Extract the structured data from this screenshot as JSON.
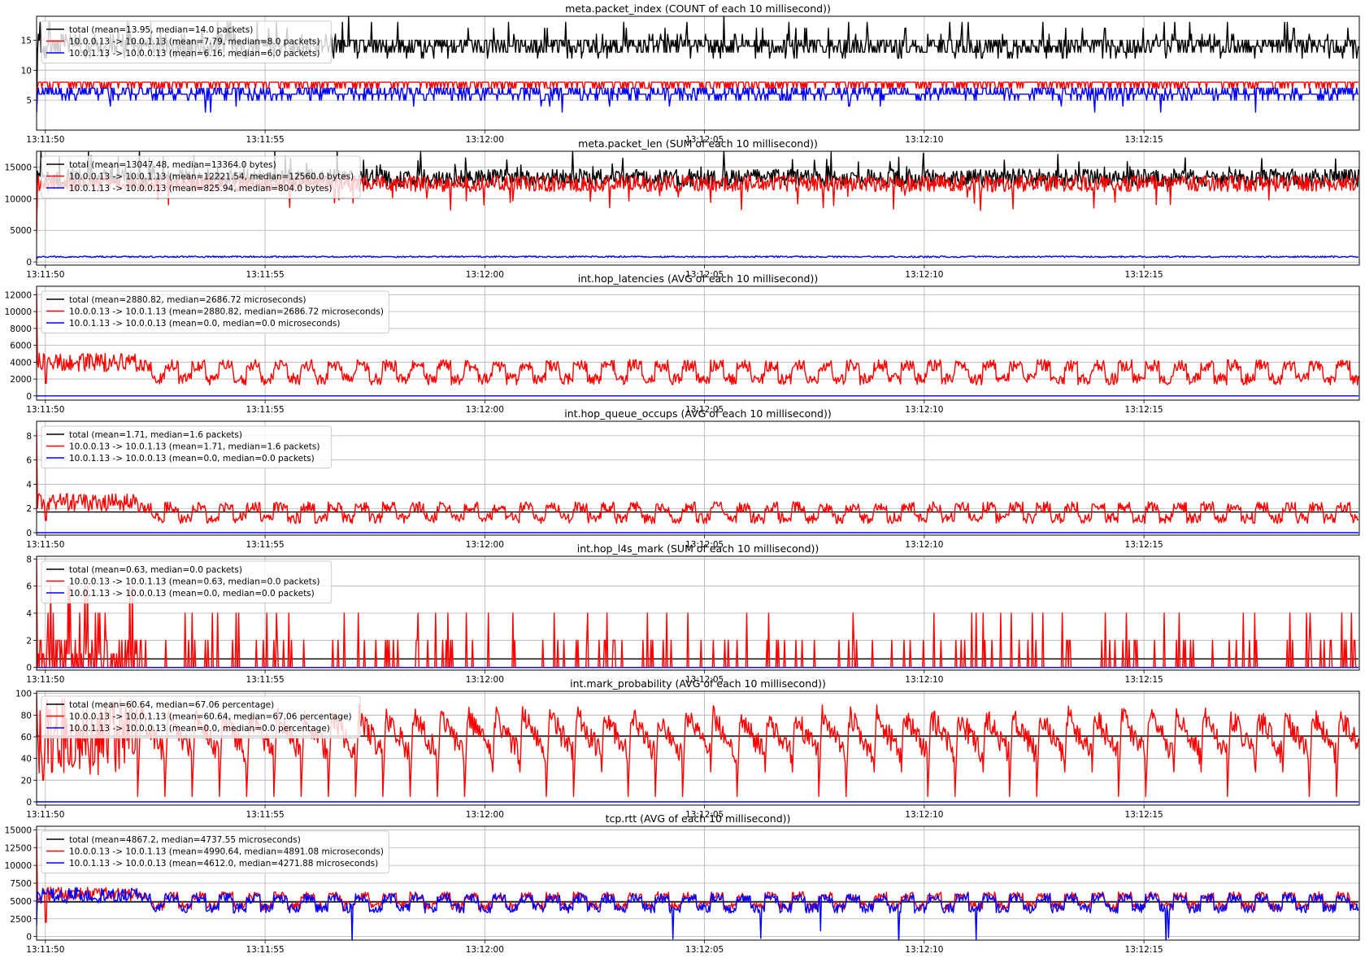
{
  "figure": {
    "x_ticks": [
      "13:11:50",
      "13:11:55",
      "13:12:00",
      "13:12:05",
      "13:12:10",
      "13:12:15"
    ],
    "series_colors": {
      "total": "#000000",
      "forward": "#ff0000",
      "reverse": "#0000ff"
    }
  },
  "chart_data": [
    {
      "type": "line",
      "title": "meta.packet_index (COUNT of each 10 millisecond))",
      "x_range": [
        "13:11:49.8",
        "13:12:19.9"
      ],
      "ylim": [
        0,
        19
      ],
      "y_ticks": [
        5,
        10,
        15
      ],
      "grid": true,
      "legend_position": "top-left",
      "series": [
        {
          "name": "total (mean=13.95, median=14.0 packets)",
          "color": "#000000",
          "profile": {
            "base": 13.95,
            "noise": 1.6,
            "spikes": 0.05,
            "spike_amp": 3,
            "start_points": [
              [
                0,
                3
              ],
              [
                0.3,
                18
              ],
              [
                1.0,
                14
              ]
            ]
          }
        },
        {
          "name": "10.0.0.13 -> 10.0.1.13 (mean=7.79, median=8.0 packets)",
          "color": "#ff0000",
          "profile": {
            "base": 7.79,
            "noise": 0.6,
            "spikes": 0.0,
            "spike_amp": 0,
            "start_points": [
              [
                0,
                3
              ],
              [
                0.4,
                8
              ]
            ]
          }
        },
        {
          "name": "10.0.1.13 -> 10.0.0.13 (mean=6.16, median=6.0 packets)",
          "color": "#0000ff",
          "profile": {
            "base": 6.16,
            "noise": 0.9,
            "spikes": 0.02,
            "spike_amp": -2,
            "start_points": [
              [
                0,
                3
              ],
              [
                0.4,
                6
              ]
            ]
          }
        }
      ]
    },
    {
      "type": "line",
      "title": "meta.packet_len (SUM of each 10 millisecond))",
      "x_range": [
        "13:11:49.8",
        "13:12:19.9"
      ],
      "ylim": [
        -500,
        17500
      ],
      "y_ticks": [
        0,
        5000,
        10000,
        15000
      ],
      "grid": true,
      "legend_position": "top-left",
      "series": [
        {
          "name": "total (mean=13047.48, median=13364.0 bytes)",
          "color": "#000000",
          "profile": {
            "base": 13300,
            "noise": 1400,
            "spikes": 0.03,
            "spike_amp": 3000,
            "start_points": [
              [
                0,
                5000
              ],
              [
                0.3,
                13000
              ]
            ]
          }
        },
        {
          "name": "10.0.0.13 -> 10.0.1.13 (mean=12221.54, median=12560.0 bytes)",
          "color": "#ff0000",
          "profile": {
            "base": 12400,
            "noise": 1300,
            "spikes": 0.02,
            "spike_amp": -3000,
            "start_points": [
              [
                0,
                4500
              ],
              [
                0.3,
                12500
              ]
            ]
          }
        },
        {
          "name": "10.0.1.13 -> 10.0.0.13 (mean=825.94, median=804.0 bytes)",
          "color": "#0000ff",
          "profile": {
            "base": 820,
            "noise": 120,
            "spikes": 0.0,
            "spike_amp": 0,
            "start_points": [
              [
                0,
                400
              ],
              [
                0.3,
                820
              ]
            ]
          }
        }
      ]
    },
    {
      "type": "line",
      "title": "int.hop_latencies (AVG of each 10 millisecond))",
      "x_range": [
        "13:11:49.8",
        "13:12:19.9"
      ],
      "ylim": [
        -500,
        13000
      ],
      "y_ticks": [
        0,
        2000,
        4000,
        6000,
        8000,
        10000,
        12000
      ],
      "grid": true,
      "legend_position": "top-left",
      "series": [
        {
          "name": "total (mean=2880.82, median=2686.72 microseconds)",
          "color": "#000000",
          "profile": {
            "base": 2880.82,
            "noise": 0,
            "spikes": 0.0,
            "spike_amp": 0,
            "hidden_under": "10.0.0.13 -> 10.0.1.13"
          }
        },
        {
          "name": "10.0.0.13 -> 10.0.1.13 (mean=2880.82, median=2686.72 microseconds)",
          "color": "#ff0000",
          "profile": {
            "base": 2880,
            "noise": 700,
            "square_high": 3600,
            "square_low": 2000,
            "burst_until": 2.3,
            "burst_level": 4000,
            "start_points": [
              [
                0,
                12500
              ],
              [
                0.2,
                1500
              ],
              [
                0.4,
                4000
              ]
            ]
          }
        },
        {
          "name": "10.0.1.13 -> 10.0.0.13 (mean=0.0, median=0.0 microseconds)",
          "color": "#0000ff",
          "profile": {
            "base": 0,
            "noise": 0
          }
        }
      ]
    },
    {
      "type": "line",
      "title": "int.hop_queue_occups (AVG of each 10 millisecond))",
      "x_range": [
        "13:11:49.8",
        "13:12:19.9"
      ],
      "ylim": [
        -0.2,
        9.2
      ],
      "y_ticks": [
        0,
        2,
        4,
        6,
        8
      ],
      "grid": true,
      "legend_position": "top-left",
      "series": [
        {
          "name": "total (mean=1.71, median=1.6 packets)",
          "color": "#000000",
          "profile": {
            "base": 1.71,
            "noise": 0
          }
        },
        {
          "name": "10.0.0.13 -> 10.0.1.13 (mean=1.71, median=1.6 packets)",
          "color": "#ff0000",
          "profile": {
            "base": 1.71,
            "noise": 0.45,
            "square_high": 2.1,
            "square_low": 1.2,
            "burst_until": 2.3,
            "burst_level": 2.5,
            "start_points": [
              [
                0,
                8.5
              ],
              [
                0.2,
                1
              ],
              [
                0.4,
                2.5
              ]
            ]
          }
        },
        {
          "name": "10.0.1.13 -> 10.0.0.13 (mean=0.0, median=0.0 packets)",
          "color": "#0000ff",
          "profile": {
            "base": 0,
            "noise": 0
          }
        }
      ]
    },
    {
      "type": "line",
      "title": "int.hop_l4s_mark (SUM of each 10 millisecond))",
      "x_range": [
        "13:11:49.8",
        "13:12:19.9"
      ],
      "ylim": [
        -0.2,
        8.2
      ],
      "y_ticks": [
        0,
        2,
        4,
        6,
        8
      ],
      "grid": true,
      "legend_position": "top-left",
      "series": [
        {
          "name": "total (mean=0.63, median=0.0 packets)",
          "color": "#000000",
          "profile": {
            "base": 0.63,
            "noise": 0
          }
        },
        {
          "name": "10.0.0.13 -> 10.0.1.13 (mean=0.63, median=0.0 packets)",
          "color": "#ff0000",
          "profile": {
            "base": 0.63,
            "discrete_marks": true,
            "burst_until": 2.3,
            "start_points": [
              [
                0,
                8
              ],
              [
                0.2,
                0
              ]
            ]
          }
        },
        {
          "name": "10.0.1.13 -> 10.0.0.13 (mean=0.0, median=0.0 packets)",
          "color": "#0000ff",
          "profile": {
            "base": 0,
            "noise": 0
          }
        }
      ]
    },
    {
      "type": "line",
      "title": "int.mark_probability (AVG of each 10 millisecond))",
      "x_range": [
        "13:11:49.8",
        "13:12:19.9"
      ],
      "ylim": [
        -3,
        102
      ],
      "y_ticks": [
        0,
        20,
        40,
        60,
        80,
        100
      ],
      "grid": true,
      "legend_position": "top-left",
      "series": [
        {
          "name": "total (mean=60.64, median=67.06 percentage)",
          "color": "#000000",
          "profile": {
            "base": 60.64,
            "noise": 0
          }
        },
        {
          "name": "10.0.0.13 -> 10.0.1.13 (mean=60.64, median=67.06 percentage)",
          "color": "#ff0000",
          "profile": {
            "base": 67,
            "sawtooth": true,
            "burst_until": 2.3,
            "start_points": [
              [
                0,
                100
              ],
              [
                0.15,
                20
              ],
              [
                0.3,
                85
              ]
            ]
          }
        },
        {
          "name": "10.0.1.13 -> 10.0.0.13 (mean=0.0, median=0.0 percentage)",
          "color": "#0000ff",
          "profile": {
            "base": 0,
            "noise": 0
          }
        }
      ]
    },
    {
      "type": "line",
      "title": "tcp.rtt (AVG of each 10 millisecond))",
      "x_range": [
        "13:11:49.8",
        "13:12:19.9"
      ],
      "ylim": [
        -500,
        15500
      ],
      "y_ticks": [
        0,
        2500,
        5000,
        7500,
        10000,
        12500,
        15000
      ],
      "grid": true,
      "legend_position": "top-left",
      "series": [
        {
          "name": "total (mean=4867.2, median=4737.55 microseconds)",
          "color": "#000000",
          "profile": {
            "base": 4867.2,
            "noise": 0
          }
        },
        {
          "name": "10.0.0.13 -> 10.0.1.13 (mean=4990.64, median=4891.08 microseconds)",
          "color": "#ff0000",
          "profile": {
            "base": 4990,
            "noise": 600,
            "square_high": 5700,
            "square_low": 4300,
            "burst_until": 2.3,
            "burst_level": 6000,
            "start_points": [
              [
                0,
                14500
              ],
              [
                0.2,
                2000
              ],
              [
                0.4,
                6000
              ]
            ]
          }
        },
        {
          "name": "10.0.1.13 -> 10.0.0.13 (mean=4612.0, median=4271.88 microseconds)",
          "color": "#0000ff",
          "profile": {
            "base": 4612,
            "noise": 700,
            "square_high": 5400,
            "square_low": 4000,
            "burst_until": 2.3,
            "burst_level": 5800,
            "spikes": 0.004,
            "spike_amp": -4500,
            "start_points": [
              [
                0,
                1500
              ],
              [
                0.2,
                6000
              ]
            ]
          }
        }
      ]
    }
  ]
}
